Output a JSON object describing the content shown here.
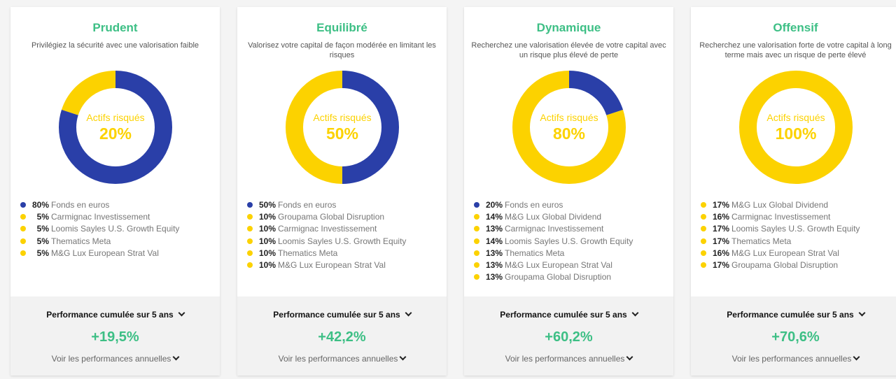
{
  "colors": {
    "safe": "#2a3fa8",
    "risky": "#fcd200",
    "accent": "#3dbf85"
  },
  "common": {
    "center_label": "Actifs risqués",
    "perf_header": "Performance cumulée sur 5 ans",
    "perf_link": "Voir les performances annuelles"
  },
  "cards": [
    {
      "title": "Prudent",
      "subtitle": "Privilégiez la sécurité avec une valorisation faible",
      "risky": "20%",
      "perf": "+19,5%",
      "items": [
        {
          "pct": "80%",
          "name": "Fonds en euros",
          "type": "safe",
          "value": 80
        },
        {
          "pct": "5%",
          "name": "Carmignac Investissement",
          "type": "risky",
          "value": 5
        },
        {
          "pct": "5%",
          "name": "Loomis Sayles U.S. Growth Equity",
          "type": "risky",
          "value": 5
        },
        {
          "pct": "5%",
          "name": "Thematics Meta",
          "type": "risky",
          "value": 5
        },
        {
          "pct": "5%",
          "name": "M&G Lux European Strat Val",
          "type": "risky",
          "value": 5
        }
      ]
    },
    {
      "title": "Equilibré",
      "subtitle": "Valorisez votre capital de façon modérée en limitant les risques",
      "risky": "50%",
      "perf": "+42,2%",
      "items": [
        {
          "pct": "50%",
          "name": "Fonds en euros",
          "type": "safe",
          "value": 50
        },
        {
          "pct": "10%",
          "name": "Groupama Global Disruption",
          "type": "risky",
          "value": 10
        },
        {
          "pct": "10%",
          "name": "Carmignac Investissement",
          "type": "risky",
          "value": 10
        },
        {
          "pct": "10%",
          "name": "Loomis Sayles U.S. Growth Equity",
          "type": "risky",
          "value": 10
        },
        {
          "pct": "10%",
          "name": "Thematics Meta",
          "type": "risky",
          "value": 10
        },
        {
          "pct": "10%",
          "name": "M&G Lux European Strat Val",
          "type": "risky",
          "value": 10
        }
      ]
    },
    {
      "title": "Dynamique",
      "subtitle": "Recherchez une valorisation élevée de votre capital avec un risque plus élevé de perte",
      "risky": "80%",
      "perf": "+60,2%",
      "items": [
        {
          "pct": "20%",
          "name": "Fonds en euros",
          "type": "safe",
          "value": 20
        },
        {
          "pct": "14%",
          "name": "M&G Lux Global Dividend",
          "type": "risky",
          "value": 14
        },
        {
          "pct": "13%",
          "name": "Carmignac Investissement",
          "type": "risky",
          "value": 13
        },
        {
          "pct": "14%",
          "name": "Loomis Sayles U.S. Growth Equity",
          "type": "risky",
          "value": 14
        },
        {
          "pct": "13%",
          "name": "Thematics Meta",
          "type": "risky",
          "value": 13
        },
        {
          "pct": "13%",
          "name": "M&G Lux European Strat Val",
          "type": "risky",
          "value": 13
        },
        {
          "pct": "13%",
          "name": "Groupama Global Disruption",
          "type": "risky",
          "value": 13
        }
      ]
    },
    {
      "title": "Offensif",
      "subtitle": "Recherchez une valorisation forte de votre capital à long terme mais avec un risque de perte élevé",
      "risky": "100%",
      "perf": "+70,6%",
      "items": [
        {
          "pct": "17%",
          "name": "M&G Lux Global Dividend",
          "type": "risky",
          "value": 17
        },
        {
          "pct": "16%",
          "name": "Carmignac Investissement",
          "type": "risky",
          "value": 16
        },
        {
          "pct": "17%",
          "name": "Loomis Sayles U.S. Growth Equity",
          "type": "risky",
          "value": 17
        },
        {
          "pct": "17%",
          "name": "Thematics Meta",
          "type": "risky",
          "value": 17
        },
        {
          "pct": "16%",
          "name": "M&G Lux European Strat Val",
          "type": "risky",
          "value": 16
        },
        {
          "pct": "17%",
          "name": "Groupama Global Disruption",
          "type": "risky",
          "value": 17
        }
      ]
    }
  ]
}
